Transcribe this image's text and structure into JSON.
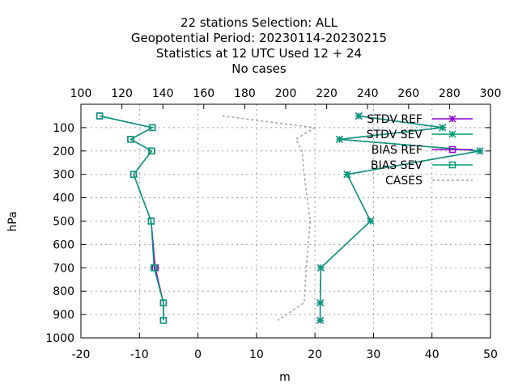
{
  "chart_data": {
    "type": "line",
    "title_lines": [
      "22 stations Selection: ALL",
      "Geopotential  Period: 20230114-20230215",
      "Statistics at 12 UTC  Used  12 + 24",
      "No cases"
    ],
    "xlabel": "m",
    "ylabel": "hPa",
    "xlim": [
      -20,
      50
    ],
    "x2lim": [
      100,
      300
    ],
    "ylim": [
      1000,
      0
    ],
    "x_ticks": [
      "-20",
      "-10",
      "0",
      "10",
      "20",
      "30",
      "40",
      "50"
    ],
    "x2_ticks": [
      "100",
      "120",
      "140",
      "160",
      "180",
      "200",
      "220",
      "240",
      "260",
      "280",
      "300"
    ],
    "y_ticks": [
      "100",
      "200",
      "300",
      "400",
      "500",
      "600",
      "700",
      "800",
      "900",
      "1000"
    ],
    "grid": true,
    "legend_position": "top-right",
    "colors": {
      "ref": "#9400d3",
      "sev": "#009e73",
      "cases": "#a0a0a0"
    },
    "series": [
      {
        "name": "STDV REF",
        "axis": "x1",
        "marker": "star",
        "color": "#9400d3",
        "points": [
          [
            27.5,
            50
          ],
          [
            41.8,
            100
          ],
          [
            24.2,
            150
          ],
          [
            48.2,
            200
          ],
          [
            25.5,
            300
          ],
          [
            29.5,
            500
          ],
          [
            21,
            700
          ],
          [
            20.9,
            850
          ],
          [
            20.9,
            925
          ]
        ]
      },
      {
        "name": "STDV SEV",
        "axis": "x1",
        "marker": "star",
        "color": "#009e73",
        "points": [
          [
            27.5,
            50
          ],
          [
            41.8,
            100
          ],
          [
            24.2,
            150
          ],
          [
            48.2,
            200
          ],
          [
            25.5,
            300
          ],
          [
            29.5,
            500
          ],
          [
            21,
            700
          ],
          [
            20.9,
            850
          ],
          [
            20.9,
            925
          ]
        ]
      },
      {
        "name": "BIAS REF",
        "axis": "x1",
        "marker": "square",
        "color": "#9400d3",
        "points": [
          [
            -16.8,
            50
          ],
          [
            -7.8,
            100
          ],
          [
            -11.5,
            150
          ],
          [
            -7.9,
            200
          ],
          [
            -11,
            300
          ],
          [
            -8,
            500
          ],
          [
            -7.3,
            700
          ],
          [
            -5.9,
            850
          ],
          [
            -5.9,
            925
          ]
        ]
      },
      {
        "name": "BIAS SEV",
        "axis": "x1",
        "marker": "square",
        "color": "#009e73",
        "points": [
          [
            -16.8,
            50
          ],
          [
            -7.8,
            100
          ],
          [
            -11.5,
            150
          ],
          [
            -7.9,
            200
          ],
          [
            -11,
            300
          ],
          [
            -8,
            500
          ],
          [
            -7.5,
            700
          ],
          [
            -5.9,
            850
          ],
          [
            -5.9,
            925
          ]
        ]
      },
      {
        "name": "CASES",
        "axis": "x2",
        "marker": "none",
        "color": "#a0a0a0",
        "dash": true,
        "points": [
          [
            169,
            50
          ],
          [
            214,
            100
          ],
          [
            205,
            150
          ],
          [
            208,
            200
          ],
          [
            209,
            300
          ],
          [
            212,
            500
          ],
          [
            210,
            700
          ],
          [
            209,
            850
          ],
          [
            196,
            925
          ]
        ]
      }
    ]
  }
}
